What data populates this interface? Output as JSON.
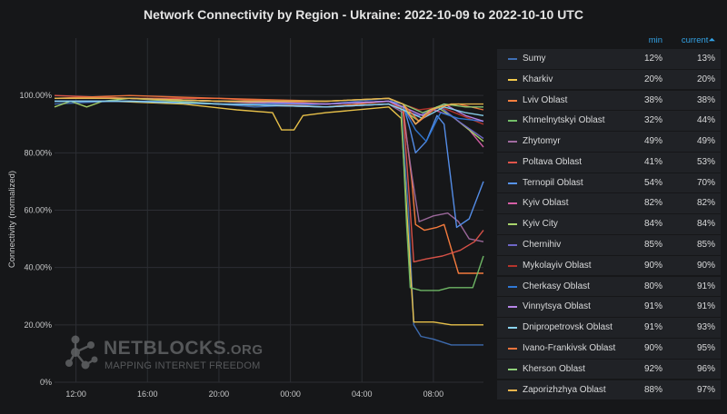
{
  "chart_data": {
    "type": "line",
    "title": "Network Connectivity by Region - Ukraine: 2022-10-09 to 2022-10-10 UTC",
    "ylabel": "Connectivity (normalized)",
    "xlabel": "",
    "x_ticks": [
      "12:00",
      "16:00",
      "20:00",
      "00:00",
      "04:00",
      "08:00"
    ],
    "y_ticks": [
      "0%",
      "20.00%",
      "40.00%",
      "60.00%",
      "80.00%",
      "100.00%"
    ],
    "xlim_hours": [
      10.8,
      34.8
    ],
    "ylim": [
      0,
      120
    ],
    "grid": true,
    "legend_header": {
      "min": "min",
      "current": "current⏶"
    },
    "series": [
      {
        "name": "Sumy",
        "color": "#3f6fb5",
        "min": "12%",
        "current": "13%",
        "points": [
          [
            10.8,
            97
          ],
          [
            14,
            98
          ],
          [
            18,
            98
          ],
          [
            22,
            96
          ],
          [
            26,
            97
          ],
          [
            29.5,
            99
          ],
          [
            30.2,
            95
          ],
          [
            30.6,
            60
          ],
          [
            30.9,
            20
          ],
          [
            31.3,
            16
          ],
          [
            32,
            15
          ],
          [
            33,
            13
          ],
          [
            34.8,
            13
          ]
        ]
      },
      {
        "name": "Kharkiv",
        "color": "#f2c94c",
        "min": "20%",
        "current": "20%",
        "points": [
          [
            10.8,
            98
          ],
          [
            14,
            98
          ],
          [
            18,
            97
          ],
          [
            21,
            95
          ],
          [
            23,
            94
          ],
          [
            23.5,
            88
          ],
          [
            24.2,
            88
          ],
          [
            24.7,
            93
          ],
          [
            26,
            94
          ],
          [
            29.5,
            96
          ],
          [
            30.2,
            92
          ],
          [
            30.7,
            40
          ],
          [
            30.9,
            21
          ],
          [
            32,
            21
          ],
          [
            33,
            20
          ],
          [
            34.8,
            20
          ]
        ]
      },
      {
        "name": "Lviv Oblast",
        "color": "#ff7f3f",
        "min": "38%",
        "current": "38%",
        "points": [
          [
            10.8,
            99
          ],
          [
            15,
            99
          ],
          [
            20,
            98
          ],
          [
            26,
            96
          ],
          [
            29.5,
            98
          ],
          [
            30.3,
            96
          ],
          [
            30.8,
            70
          ],
          [
            31.0,
            55
          ],
          [
            31.5,
            53
          ],
          [
            32.2,
            54
          ],
          [
            32.6,
            55
          ],
          [
            33.4,
            38
          ],
          [
            34.8,
            38
          ]
        ]
      },
      {
        "name": "Khmelnytskyi Oblast",
        "color": "#73bf69",
        "min": "32%",
        "current": "44%",
        "points": [
          [
            10.8,
            99
          ],
          [
            15,
            99
          ],
          [
            20,
            98
          ],
          [
            26,
            97
          ],
          [
            29.5,
            98
          ],
          [
            30.2,
            96
          ],
          [
            30.5,
            55
          ],
          [
            30.7,
            33
          ],
          [
            31.3,
            32
          ],
          [
            32.3,
            32
          ],
          [
            32.9,
            33
          ],
          [
            33.6,
            33
          ],
          [
            34.2,
            33
          ],
          [
            34.8,
            44
          ]
        ]
      },
      {
        "name": "Zhytomyr",
        "color": "#a16ba0",
        "min": "49%",
        "current": "49%",
        "points": [
          [
            10.8,
            98
          ],
          [
            15,
            98
          ],
          [
            20,
            97
          ],
          [
            26,
            96
          ],
          [
            29.5,
            97
          ],
          [
            30.3,
            94
          ],
          [
            30.8,
            72
          ],
          [
            31.2,
            56
          ],
          [
            32,
            58
          ],
          [
            32.8,
            59
          ],
          [
            33.4,
            56
          ],
          [
            34,
            50
          ],
          [
            34.8,
            49
          ]
        ]
      },
      {
        "name": "Poltava Oblast",
        "color": "#e0544a",
        "min": "41%",
        "current": "53%",
        "points": [
          [
            10.8,
            100
          ],
          [
            15,
            99
          ],
          [
            20,
            99
          ],
          [
            26,
            97
          ],
          [
            29.5,
            98
          ],
          [
            30.3,
            95
          ],
          [
            30.7,
            60
          ],
          [
            30.9,
            42
          ],
          [
            31.6,
            43
          ],
          [
            32.5,
            44
          ],
          [
            33.5,
            46
          ],
          [
            34.3,
            49
          ],
          [
            34.8,
            53
          ]
        ]
      },
      {
        "name": "Ternopil Oblast",
        "color": "#5794f2",
        "min": "54%",
        "current": "70%",
        "points": [
          [
            10.8,
            99
          ],
          [
            15,
            99
          ],
          [
            20,
            98
          ],
          [
            26,
            97
          ],
          [
            29.5,
            98
          ],
          [
            30.3,
            97
          ],
          [
            30.7,
            88
          ],
          [
            31.0,
            80
          ],
          [
            31.6,
            84
          ],
          [
            32.2,
            93
          ],
          [
            32.6,
            90
          ],
          [
            33.3,
            54
          ],
          [
            34,
            57
          ],
          [
            34.8,
            70
          ]
        ]
      },
      {
        "name": "Kyiv Oblast",
        "color": "#d65fa6",
        "min": "82%",
        "current": "82%",
        "points": [
          [
            10.8,
            99
          ],
          [
            15,
            99
          ],
          [
            20,
            98
          ],
          [
            26,
            97
          ],
          [
            29.5,
            98
          ],
          [
            30.3,
            96
          ],
          [
            31,
            90
          ],
          [
            32,
            95
          ],
          [
            33,
            93
          ],
          [
            34,
            88
          ],
          [
            34.8,
            82
          ]
        ]
      },
      {
        "name": "Kyiv City",
        "color": "#a9d46c",
        "min": "84%",
        "current": "84%",
        "points": [
          [
            10.8,
            96
          ],
          [
            11.7,
            98
          ],
          [
            12.6,
            96
          ],
          [
            13.5,
            98
          ],
          [
            15,
            99
          ],
          [
            20,
            97
          ],
          [
            26,
            96
          ],
          [
            29.5,
            97
          ],
          [
            30.3,
            95
          ],
          [
            31.2,
            91
          ],
          [
            32.2,
            96
          ],
          [
            33.2,
            92
          ],
          [
            34.8,
            84
          ]
        ]
      },
      {
        "name": "Chernihiv",
        "color": "#6e66c7",
        "min": "85%",
        "current": "85%",
        "points": [
          [
            10.8,
            98
          ],
          [
            15,
            98
          ],
          [
            20,
            97
          ],
          [
            26,
            96
          ],
          [
            29.5,
            97
          ],
          [
            30.3,
            95
          ],
          [
            31.2,
            93
          ],
          [
            32.4,
            96
          ],
          [
            33.4,
            91
          ],
          [
            34.8,
            85
          ]
        ]
      },
      {
        "name": "Mykolayiv Oblast",
        "color": "#b5342c",
        "min": "90%",
        "current": "90%",
        "points": [
          [
            10.8,
            99
          ],
          [
            15,
            99
          ],
          [
            20,
            98
          ],
          [
            26,
            98
          ],
          [
            29.5,
            99
          ],
          [
            30.3,
            97
          ],
          [
            31.2,
            95
          ],
          [
            32.4,
            96
          ],
          [
            33.6,
            93
          ],
          [
            34.8,
            90
          ]
        ]
      },
      {
        "name": "Cherkasy Oblast",
        "color": "#2f78d6",
        "min": "80%",
        "current": "91%",
        "points": [
          [
            10.8,
            98
          ],
          [
            15,
            98
          ],
          [
            20,
            97
          ],
          [
            26,
            97
          ],
          [
            29.5,
            98
          ],
          [
            30.3,
            96
          ],
          [
            31.0,
            88
          ],
          [
            31.6,
            84
          ],
          [
            32.4,
            94
          ],
          [
            33.4,
            92
          ],
          [
            34.8,
            91
          ]
        ]
      },
      {
        "name": "Vinnytsya Oblast",
        "color": "#b685e8",
        "min": "91%",
        "current": "91%",
        "points": [
          [
            10.8,
            99
          ],
          [
            15,
            99
          ],
          [
            20,
            98
          ],
          [
            26,
            97
          ],
          [
            29.5,
            98
          ],
          [
            30.3,
            96
          ],
          [
            31.4,
            93
          ],
          [
            32.6,
            97
          ],
          [
            33.8,
            93
          ],
          [
            34.8,
            91
          ]
        ]
      },
      {
        "name": "Dnipropetrovsk Oblast",
        "color": "#8ad4f0",
        "min": "91%",
        "current": "93%",
        "points": [
          [
            10.8,
            98
          ],
          [
            15,
            98
          ],
          [
            20,
            97
          ],
          [
            26,
            96
          ],
          [
            29.5,
            97
          ],
          [
            30.3,
            95
          ],
          [
            31.4,
            92
          ],
          [
            32.6,
            96
          ],
          [
            33.8,
            94
          ],
          [
            34.8,
            93
          ]
        ]
      },
      {
        "name": "Ivano-Frankivsk Oblast",
        "color": "#f0743c",
        "min": "90%",
        "current": "95%",
        "points": [
          [
            10.8,
            99
          ],
          [
            15,
            100
          ],
          [
            20,
            99
          ],
          [
            26,
            98
          ],
          [
            29.5,
            99
          ],
          [
            30.3,
            97
          ],
          [
            31.2,
            91
          ],
          [
            32.2,
            96
          ],
          [
            33.4,
            97
          ],
          [
            34.8,
            95
          ]
        ]
      },
      {
        "name": "Kherson Oblast",
        "color": "#8fd17a",
        "min": "92%",
        "current": "96%",
        "points": [
          [
            10.8,
            99
          ],
          [
            15,
            99
          ],
          [
            20,
            98
          ],
          [
            26,
            98
          ],
          [
            29.5,
            99
          ],
          [
            30.3,
            97
          ],
          [
            31.4,
            94
          ],
          [
            32.6,
            97
          ],
          [
            33.8,
            96
          ],
          [
            34.8,
            96
          ]
        ]
      },
      {
        "name": "Zaporizhzhya Oblast",
        "color": "#e8b44c",
        "min": "88%",
        "current": "97%",
        "points": [
          [
            10.8,
            99
          ],
          [
            15,
            99
          ],
          [
            20,
            98
          ],
          [
            26,
            98
          ],
          [
            29.5,
            99
          ],
          [
            30.3,
            97
          ],
          [
            31.0,
            90
          ],
          [
            31.8,
            95
          ],
          [
            33,
            97
          ],
          [
            34.8,
            97
          ]
        ]
      }
    ]
  },
  "watermark": {
    "logo": "NETBLOCKS",
    "logo_suffix": ".ORG",
    "tagline": "MAPPING INTERNET FREEDOM"
  }
}
